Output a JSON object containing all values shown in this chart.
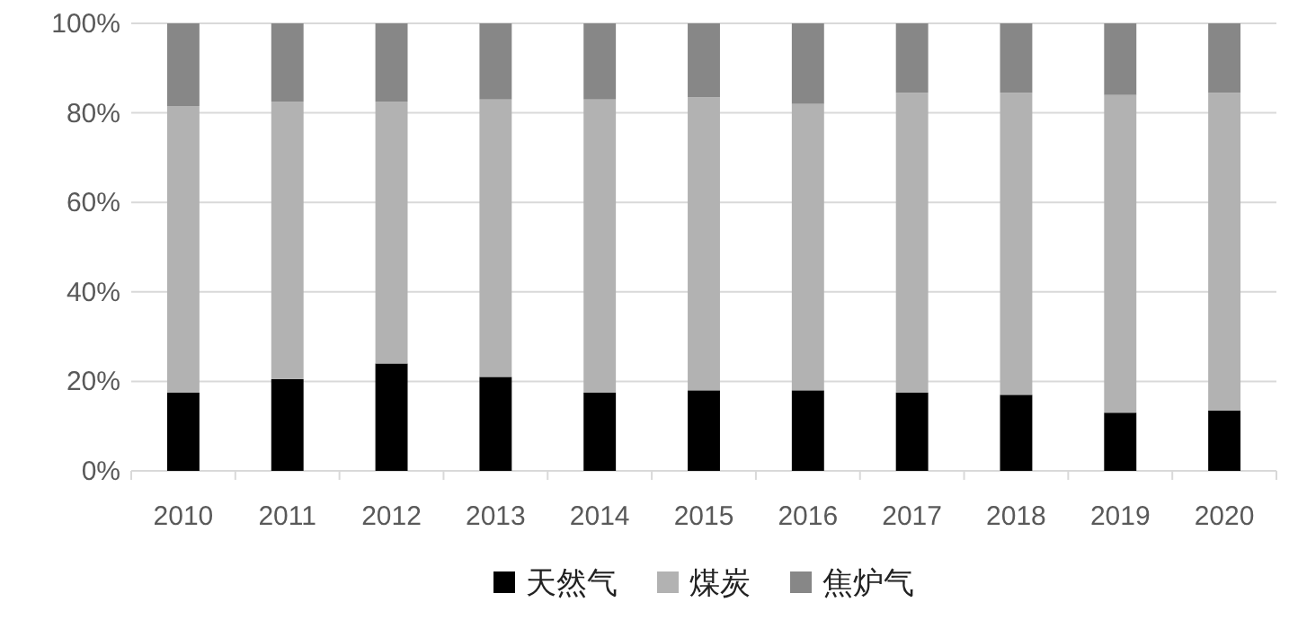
{
  "chart_data": {
    "type": "bar",
    "stacked": true,
    "categories": [
      "2010",
      "2011",
      "2012",
      "2013",
      "2014",
      "2015",
      "2016",
      "2017",
      "2018",
      "2019",
      "2020"
    ],
    "series": [
      {
        "name": "天然气",
        "color": "#000000",
        "values": [
          17.5,
          20.5,
          24,
          21,
          17.5,
          18,
          18,
          17.5,
          17,
          13,
          13.5
        ]
      },
      {
        "name": "煤炭",
        "color": "#b2b2b2",
        "values": [
          64,
          62,
          58.5,
          62,
          65.5,
          65.5,
          64,
          67,
          67.5,
          71,
          71
        ]
      },
      {
        "name": "焦炉气",
        "color": "#878787",
        "values": [
          18.5,
          17.5,
          17.5,
          17,
          17,
          16.5,
          18,
          15.5,
          15.5,
          16,
          15.5
        ]
      }
    ],
    "ylim": [
      0,
      100
    ],
    "yticks": [
      {
        "value": 0,
        "label": "0%"
      },
      {
        "value": 20,
        "label": "20%"
      },
      {
        "value": 40,
        "label": "40%"
      },
      {
        "value": 60,
        "label": "60%"
      },
      {
        "value": 80,
        "label": "80%"
      },
      {
        "value": 100,
        "label": "100%"
      }
    ],
    "grid": "y",
    "legend": "bottom"
  }
}
